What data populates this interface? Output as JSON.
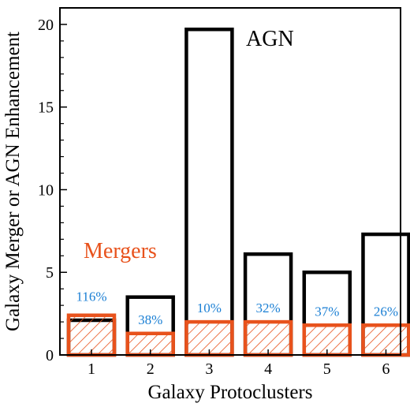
{
  "chart_data": {
    "type": "bar",
    "xlabel": "Galaxy Protoclusters",
    "ylabel": "Galaxy Merger or AGN Enhancement",
    "categories": [
      "1",
      "2",
      "3",
      "4",
      "5",
      "6"
    ],
    "ylim": [
      0,
      21
    ],
    "yticks": [
      0,
      5,
      10,
      15,
      20
    ],
    "grid": false,
    "series": [
      {
        "name": "AGN",
        "style": "outline",
        "color": "#000000",
        "values": [
          2.1,
          3.5,
          19.7,
          6.1,
          5.0,
          7.3
        ]
      },
      {
        "name": "Mergers",
        "style": "hatched",
        "color": "#e8521c",
        "values": [
          2.4,
          1.3,
          2.0,
          2.0,
          1.8,
          1.8
        ]
      }
    ],
    "annotations": [
      "116%",
      "38%",
      "10%",
      "32%",
      "37%",
      "26%"
    ],
    "annotation_color": "#1a7fd4"
  }
}
